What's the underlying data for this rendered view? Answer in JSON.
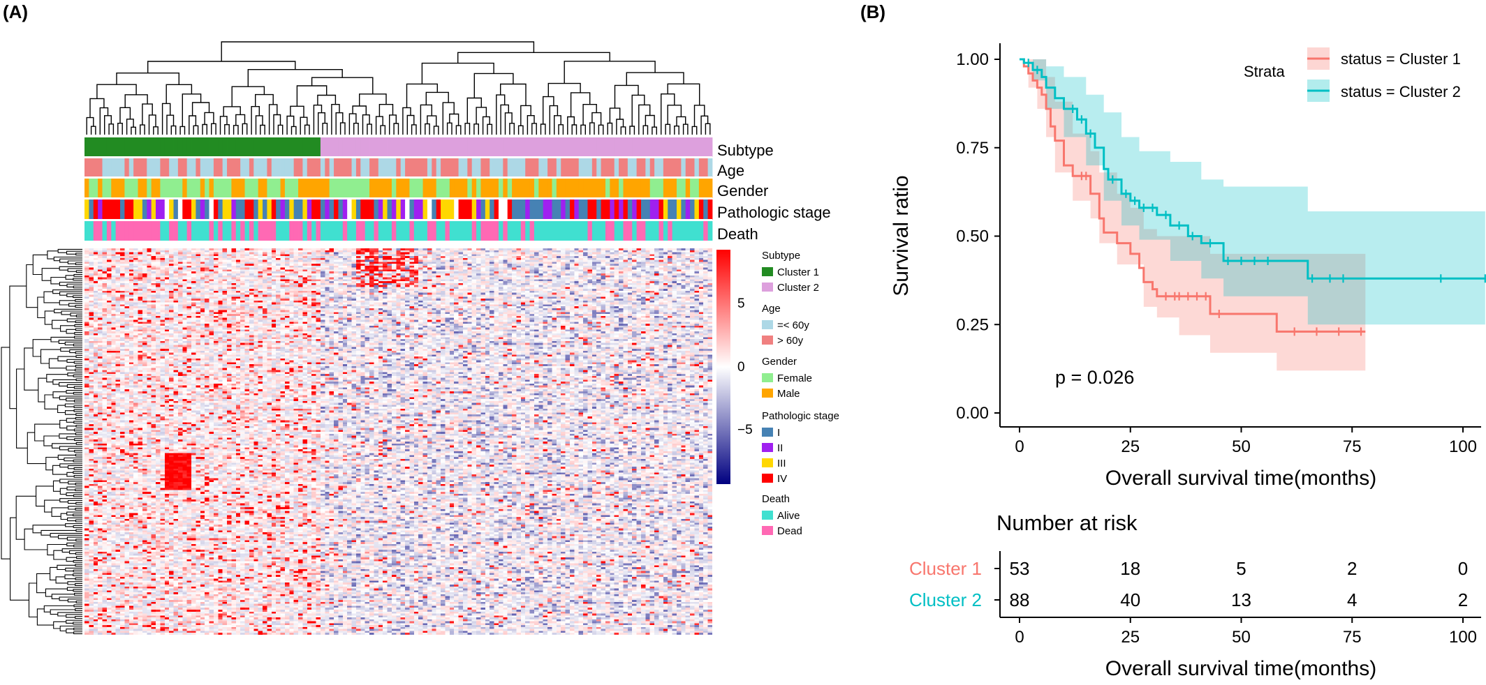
{
  "panel_a": {
    "label": "(A)",
    "annotation_tracks": [
      "Subtype",
      "Age",
      "Gender",
      "Pathologic stage",
      "Death"
    ],
    "colorbar": {
      "ticks": [
        "5",
        "0",
        "−5"
      ],
      "colors": {
        "high": "#ff0000",
        "mid": "#ffffff",
        "low": "#000080"
      }
    },
    "legend": [
      {
        "title": "Subtype",
        "items": [
          {
            "label": "Cluster 1",
            "color": "#228b22"
          },
          {
            "label": "Cluster 2",
            "color": "#dda0dd"
          }
        ]
      },
      {
        "title": "Age",
        "items": [
          {
            "label": "=< 60y",
            "color": "#add8e6"
          },
          {
            "label": "> 60y",
            "color": "#f08080"
          }
        ]
      },
      {
        "title": "Gender",
        "items": [
          {
            "label": "Female",
            "color": "#90ee90"
          },
          {
            "label": "Male",
            "color": "#ffa500"
          }
        ]
      },
      {
        "title": "Pathologic stage",
        "items": [
          {
            "label": "I",
            "color": "#4682b4"
          },
          {
            "label": "II",
            "color": "#a020f0"
          },
          {
            "label": "III",
            "color": "#ffd700"
          },
          {
            "label": "IV",
            "color": "#ff0000"
          }
        ]
      },
      {
        "title": "Death",
        "items": [
          {
            "label": "Alive",
            "color": "#40e0d0"
          },
          {
            "label": "Dead",
            "color": "#ff69b4"
          }
        ]
      }
    ]
  },
  "panel_b": {
    "label": "(B)",
    "legend_title": "Strata",
    "series_labels": [
      "status = Cluster 1",
      "status = Cluster 2"
    ],
    "ylabel": "Survival ratio",
    "xlabel": "Overall survival time(months)",
    "y_ticks": [
      "1.00",
      "0.75",
      "0.50",
      "0.25",
      "0.00"
    ],
    "x_ticks": [
      "0",
      "25",
      "50",
      "75",
      "100"
    ],
    "pvalue": "p = 0.026",
    "risk_title": "Number at risk",
    "risk_rows": [
      {
        "name": "Cluster 1",
        "counts": [
          "53",
          "18",
          "5",
          "2",
          "0"
        ]
      },
      {
        "name": "Cluster 2",
        "counts": [
          "88",
          "40",
          "13",
          "4",
          "2"
        ]
      }
    ],
    "risk_x_ticks": [
      "0",
      "25",
      "50",
      "75",
      "100"
    ],
    "risk_xlabel": "Overall survival time(months)"
  },
  "chart_data": [
    {
      "type": "heatmap",
      "title": "",
      "annotation_tracks": [
        "Subtype",
        "Age",
        "Gender",
        "Pathologic stage",
        "Death"
      ],
      "n_samples": 141,
      "subtype_groups": [
        {
          "name": "Cluster 1",
          "n": 53
        },
        {
          "name": "Cluster 2",
          "n": 88
        }
      ],
      "color_scale": {
        "min": -5,
        "max": 5,
        "ticks": [
          5,
          0,
          -5
        ]
      },
      "row_dendrogram": true,
      "column_dendrogram": true
    },
    {
      "type": "line",
      "subtype": "kaplan-meier",
      "xlabel": "Overall survival time(months)",
      "ylabel": "Survival ratio",
      "xlim": [
        0,
        105
      ],
      "ylim": [
        0,
        1
      ],
      "x_ticks": [
        0,
        25,
        50,
        75,
        100
      ],
      "y_ticks": [
        0,
        0.25,
        0.5,
        0.75,
        1.0
      ],
      "legend_title": "Strata",
      "legend_position": "top-right",
      "pvalue": "p = 0.026",
      "series": [
        {
          "name": "status = Cluster 1",
          "color": "#f8766d",
          "steps": [
            [
              0,
              1.0
            ],
            [
              1,
              0.98
            ],
            [
              2,
              0.96
            ],
            [
              3,
              0.94
            ],
            [
              4,
              0.92
            ],
            [
              5,
              0.9
            ],
            [
              6,
              0.86
            ],
            [
              7,
              0.81
            ],
            [
              8,
              0.77
            ],
            [
              10,
              0.7
            ],
            [
              12,
              0.67
            ],
            [
              16,
              0.62
            ],
            [
              18,
              0.55
            ],
            [
              19,
              0.51
            ],
            [
              22,
              0.48
            ],
            [
              25,
              0.45
            ],
            [
              27,
              0.41
            ],
            [
              28,
              0.37
            ],
            [
              30,
              0.35
            ],
            [
              31,
              0.33
            ],
            [
              43,
              0.28
            ],
            [
              58,
              0.23
            ],
            [
              78,
              0.23
            ]
          ],
          "ci_lower": [
            [
              0,
              1.0
            ],
            [
              2,
              0.92
            ],
            [
              4,
              0.86
            ],
            [
              6,
              0.78
            ],
            [
              8,
              0.68
            ],
            [
              12,
              0.6
            ],
            [
              16,
              0.55
            ],
            [
              18,
              0.48
            ],
            [
              22,
              0.42
            ],
            [
              28,
              0.3
            ],
            [
              31,
              0.27
            ],
            [
              36,
              0.22
            ],
            [
              43,
              0.17
            ],
            [
              58,
              0.12
            ],
            [
              78,
              0.12
            ]
          ],
          "ci_upper": [
            [
              0,
              1.0
            ],
            [
              3,
              1.0
            ],
            [
              6,
              0.95
            ],
            [
              8,
              0.88
            ],
            [
              12,
              0.79
            ],
            [
              16,
              0.74
            ],
            [
              18,
              0.68
            ],
            [
              22,
              0.62
            ],
            [
              25,
              0.58
            ],
            [
              28,
              0.52
            ],
            [
              31,
              0.5
            ],
            [
              43,
              0.45
            ],
            [
              58,
              0.45
            ],
            [
              78,
              0.45
            ]
          ],
          "censor_times": [
            14,
            15,
            33,
            35,
            36,
            38,
            40,
            42,
            45,
            62,
            67,
            72,
            77
          ]
        },
        {
          "name": "status = Cluster 2",
          "color": "#00bfc4",
          "steps": [
            [
              0,
              1.0
            ],
            [
              1,
              0.99
            ],
            [
              3,
              0.97
            ],
            [
              5,
              0.95
            ],
            [
              6,
              0.92
            ],
            [
              8,
              0.89
            ],
            [
              10,
              0.86
            ],
            [
              13,
              0.83
            ],
            [
              15,
              0.79
            ],
            [
              17,
              0.75
            ],
            [
              19,
              0.69
            ],
            [
              20,
              0.66
            ],
            [
              23,
              0.62
            ],
            [
              25,
              0.6
            ],
            [
              27,
              0.58
            ],
            [
              31,
              0.56
            ],
            [
              34,
              0.53
            ],
            [
              38,
              0.5
            ],
            [
              41,
              0.48
            ],
            [
              46,
              0.43
            ],
            [
              65,
              0.38
            ],
            [
              105,
              0.38
            ]
          ],
          "ci_lower": [
            [
              0,
              1.0
            ],
            [
              3,
              0.94
            ],
            [
              6,
              0.86
            ],
            [
              10,
              0.78
            ],
            [
              15,
              0.7
            ],
            [
              19,
              0.6
            ],
            [
              23,
              0.53
            ],
            [
              27,
              0.49
            ],
            [
              34,
              0.43
            ],
            [
              41,
              0.38
            ],
            [
              46,
              0.33
            ],
            [
              65,
              0.25
            ],
            [
              105,
              0.25
            ]
          ],
          "ci_upper": [
            [
              0,
              1.0
            ],
            [
              6,
              0.98
            ],
            [
              10,
              0.95
            ],
            [
              15,
              0.9
            ],
            [
              19,
              0.85
            ],
            [
              23,
              0.78
            ],
            [
              27,
              0.74
            ],
            [
              34,
              0.71
            ],
            [
              41,
              0.66
            ],
            [
              46,
              0.64
            ],
            [
              65,
              0.57
            ],
            [
              105,
              0.57
            ]
          ],
          "censor_times": [
            2,
            4,
            12,
            14,
            16,
            21,
            24,
            26,
            28,
            30,
            33,
            36,
            39,
            43,
            47,
            50,
            53,
            56,
            66,
            70,
            73,
            95,
            105
          ]
        }
      ]
    },
    {
      "type": "table",
      "title": "Number at risk",
      "columns": [
        0,
        25,
        50,
        75,
        100
      ],
      "rows": [
        {
          "name": "Cluster 1",
          "values": [
            53,
            18,
            5,
            2,
            0
          ]
        },
        {
          "name": "Cluster 2",
          "values": [
            88,
            40,
            13,
            4,
            2
          ]
        }
      ],
      "xlabel": "Overall survival time(months)"
    }
  ]
}
